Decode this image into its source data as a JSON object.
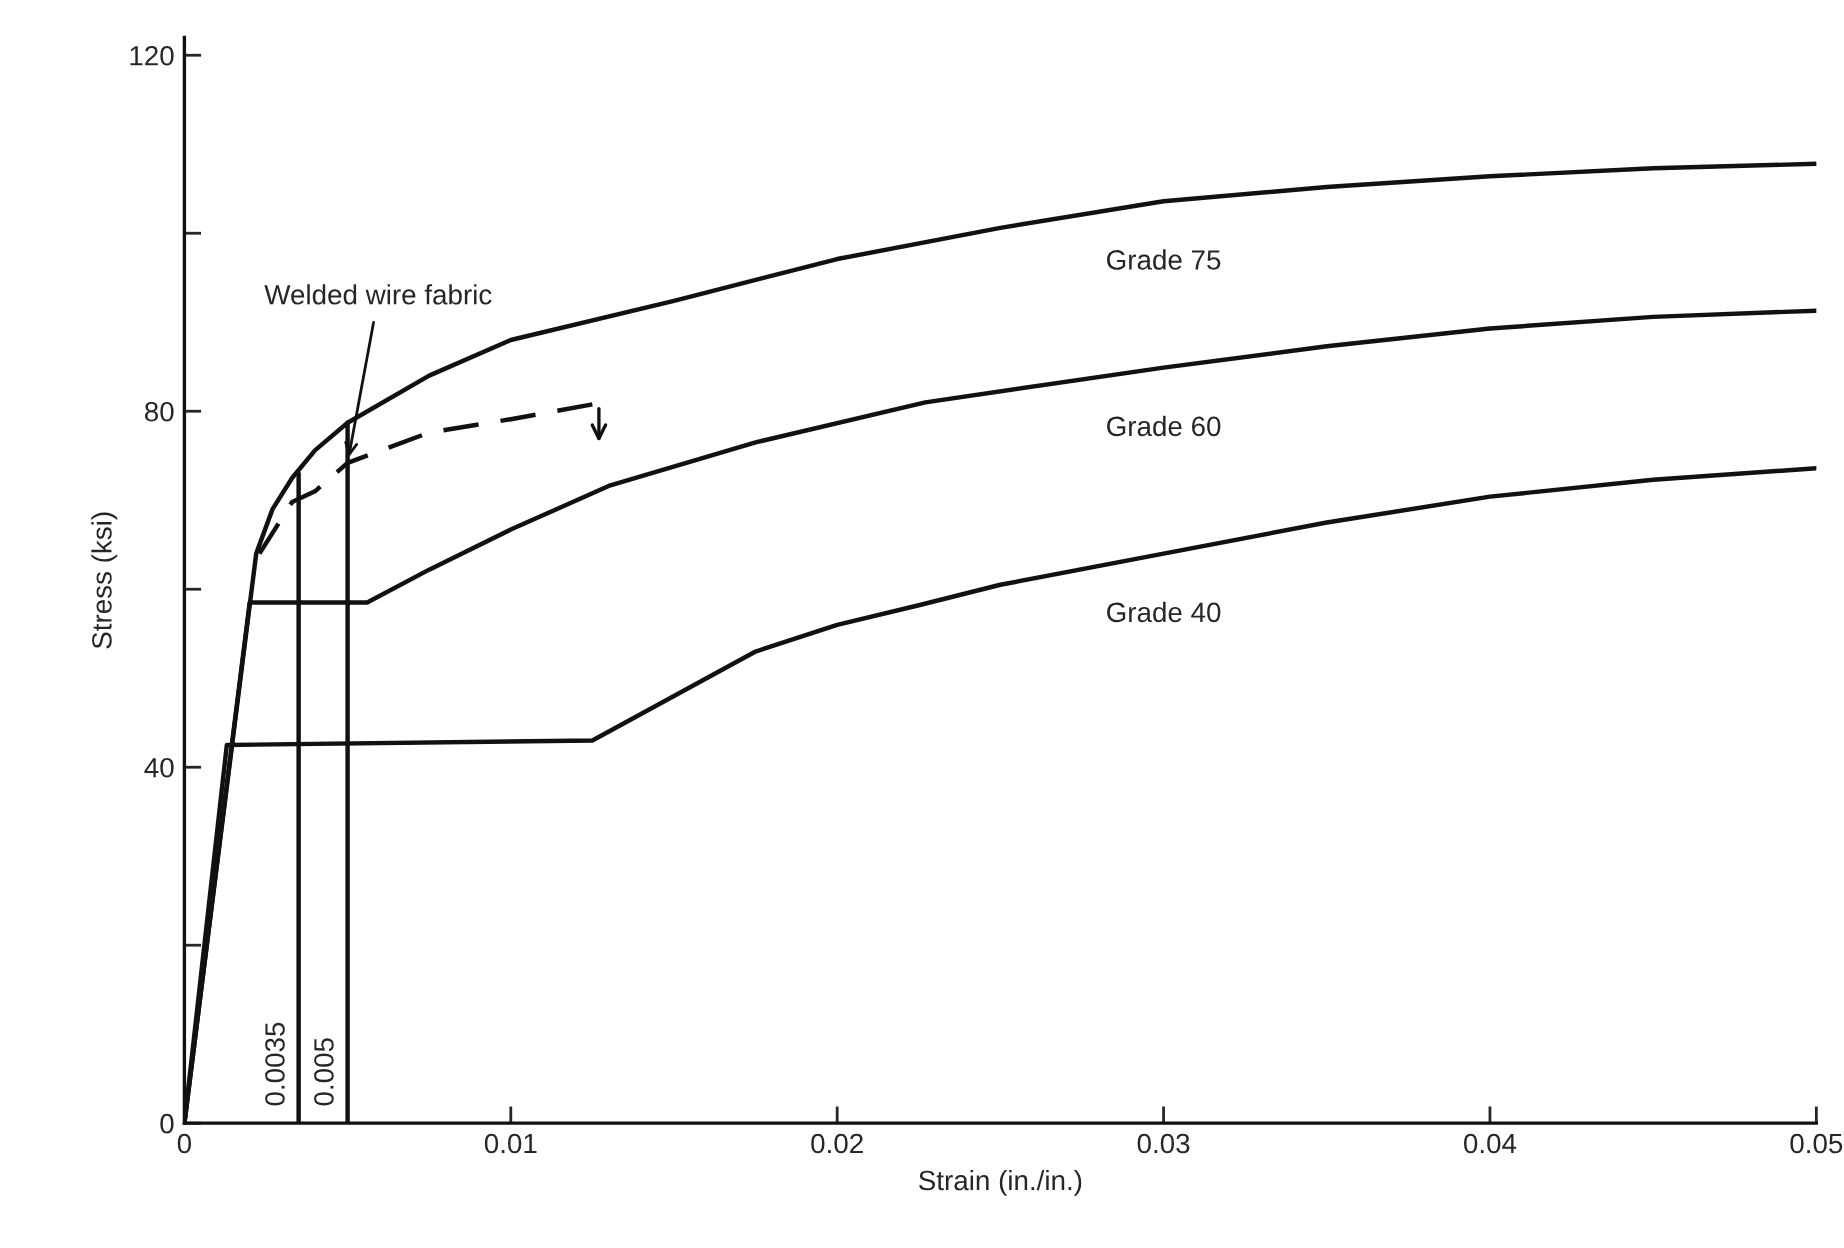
{
  "chart_data": {
    "type": "line",
    "xlabel": "Strain (in./in.)",
    "ylabel": "Stress (ksi)",
    "xlim": [
      0,
      0.05
    ],
    "ylim": [
      0,
      122
    ],
    "xticks": [
      0,
      0.01,
      0.02,
      0.03,
      0.04,
      0.05
    ],
    "yticks": [
      0,
      {
        "value": 20,
        "label": null
      },
      40,
      {
        "value": 60,
        "label": null
      },
      80,
      {
        "value": 100,
        "label": null
      },
      120
    ],
    "grid": false,
    "legend": false,
    "marker": "none",
    "series": [
      {
        "name": "Grade 75",
        "color": "#111111",
        "line_style": "solid",
        "x": [
          0,
          0.0022,
          0.0027,
          0.0033,
          0.004,
          0.005,
          0.0075,
          0.01,
          0.015,
          0.02,
          0.025,
          0.03,
          0.035,
          0.04,
          0.045,
          0.05
        ],
        "values": [
          0,
          64,
          69,
          72.5,
          75.6,
          78.7,
          84,
          88,
          92.4,
          97.1,
          100.6,
          103.6,
          105.2,
          106.4,
          107.3,
          107.8
        ]
      },
      {
        "name": "Grade 60",
        "color": "#111111",
        "line_style": "solid",
        "x": [
          0,
          0.002,
          0.0056,
          0.0075,
          0.01,
          0.013,
          0.0175,
          0.0227,
          0.03,
          0.035,
          0.04,
          0.045,
          0.05
        ],
        "values": [
          0,
          58.5,
          58.5,
          62.2,
          66.7,
          71.6,
          76.5,
          81,
          84.9,
          87.3,
          89.3,
          90.6,
          91.3
        ]
      },
      {
        "name": "Grade 40",
        "color": "#111111",
        "line_style": "solid",
        "x": [
          0,
          0.0013,
          0.0125,
          0.015,
          0.0175,
          0.02,
          0.0225,
          0.025,
          0.03,
          0.035,
          0.04,
          0.045,
          0.05
        ],
        "values": [
          0,
          42.5,
          43,
          48,
          53,
          56,
          58.2,
          60.5,
          64,
          67.5,
          70.4,
          72.3,
          73.6
        ]
      },
      {
        "name": "Welded wire fabric",
        "color": "#111111",
        "line_style": "dashed",
        "x": [
          0.0023,
          0.0033,
          0.004,
          0.005,
          0.0075,
          0.01,
          0.0127
        ],
        "values": [
          64,
          69.8,
          71,
          74.2,
          77.6,
          79.1,
          80.9
        ]
      },
      {
        "color": "#111111",
        "line_style": "solid",
        "x": [
          0.0035,
          0.0035
        ],
        "values": [
          0,
          73
        ]
      },
      {
        "color": "#111111",
        "line_style": "solid",
        "x": [
          0.005,
          0.005
        ],
        "values": [
          0,
          78.7
        ]
      }
    ],
    "annotations": [
      "0.0035",
      "0.005"
    ]
  }
}
